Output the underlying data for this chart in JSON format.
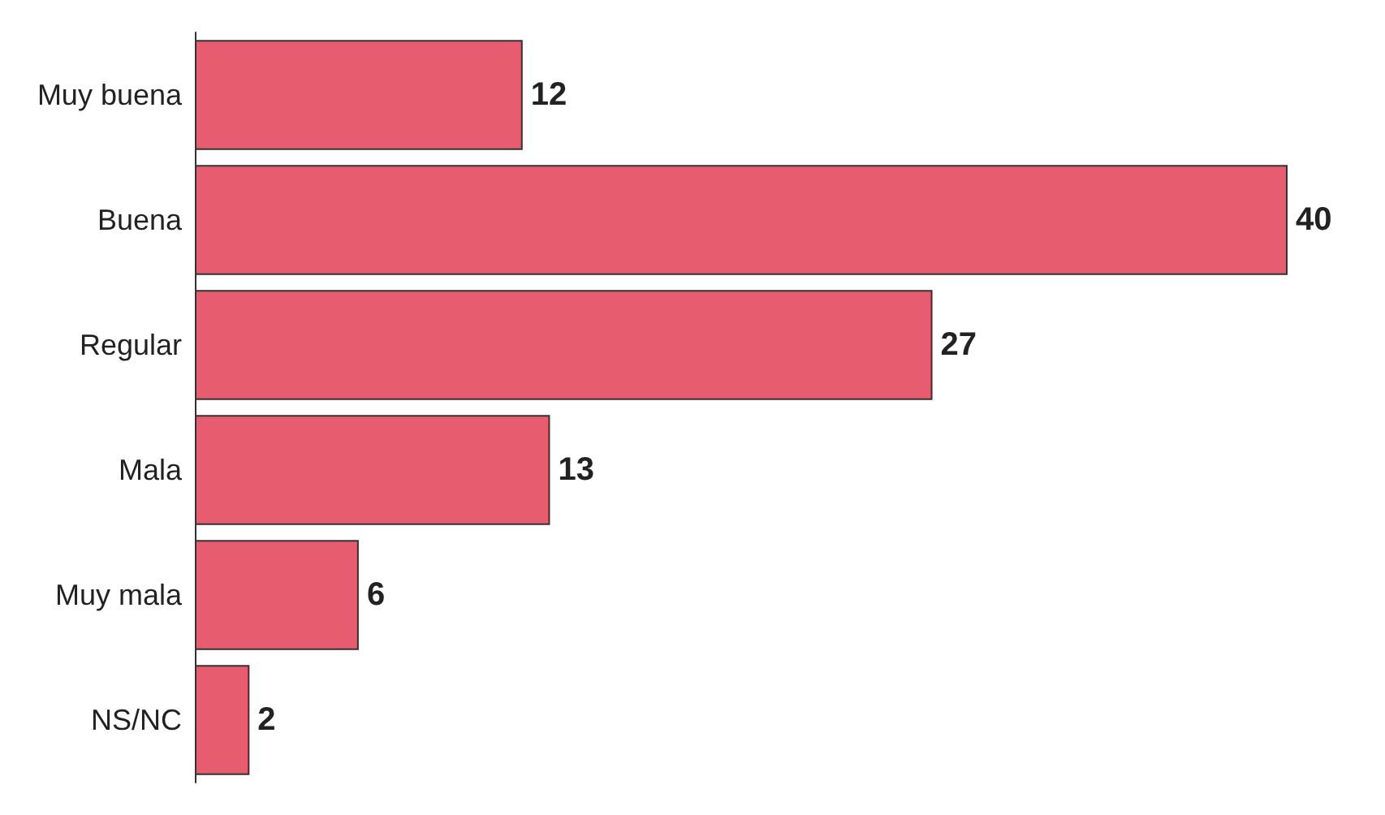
{
  "chart_data": {
    "type": "bar",
    "orientation": "horizontal",
    "categories": [
      "Muy buena",
      "Buena",
      "Regular",
      "Mala",
      "Muy mala",
      "NS/NC"
    ],
    "values": [
      12,
      40,
      27,
      13,
      6,
      2
    ],
    "color": "#e85c70",
    "data_labels": true
  }
}
